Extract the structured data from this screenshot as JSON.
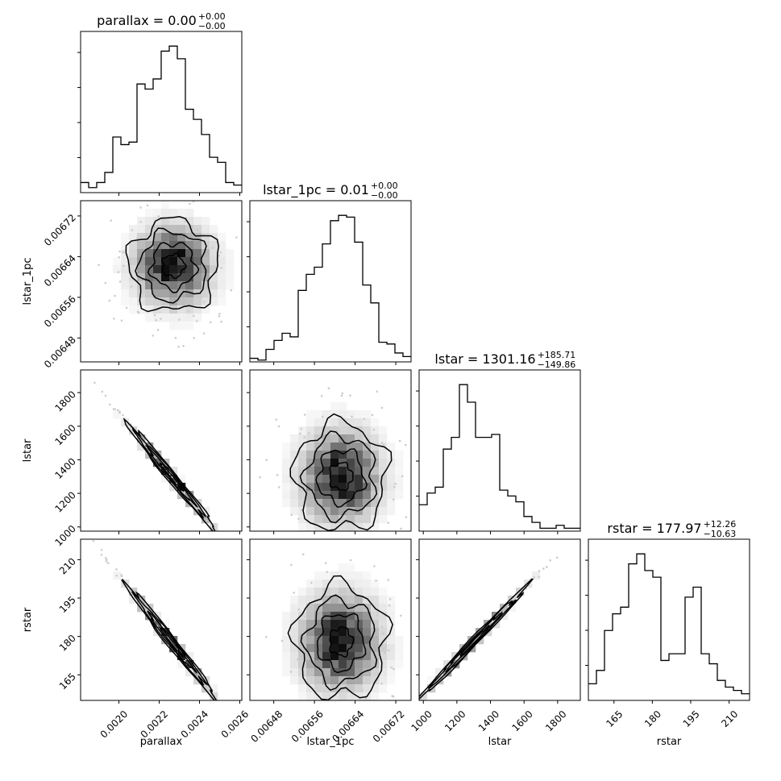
{
  "chart_data": {
    "type": "corner",
    "parameters": [
      {
        "name": "parallax",
        "label": "parallax",
        "range": [
          0.00181,
          0.00261
        ],
        "ticks": [
          0.002,
          0.0022,
          0.0024,
          0.0026
        ],
        "tick_labels": [
          "0.0020",
          "0.0022",
          "0.0024",
          "0.0026"
        ],
        "title": {
          "base": "parallax = 0.00",
          "sup": "+0.00",
          "sub": "−0.00"
        },
        "hist": [
          4,
          2,
          4,
          8,
          22,
          19,
          20,
          43,
          41,
          45,
          56,
          58,
          53,
          33,
          29,
          23,
          14,
          12,
          4,
          3
        ]
      },
      {
        "name": "lstar_1pc",
        "label": "lstar_1pc",
        "range": [
          0.006433,
          0.00675
        ],
        "ticks": [
          0.00648,
          0.00656,
          0.00664,
          0.00672
        ],
        "tick_labels": [
          "0.00648",
          "0.00656",
          "0.00664",
          "0.00672"
        ],
        "title": {
          "base": "lstar_1pc = 0.01",
          "sup": "+0.00",
          "sub": "−0.00"
        },
        "hist": [
          2,
          1,
          7,
          12,
          16,
          14,
          40,
          49,
          53,
          66,
          79,
          82,
          81,
          67,
          43,
          33,
          11,
          10,
          5,
          3
        ]
      },
      {
        "name": "lstar",
        "label": "lstar",
        "range": [
          975,
          1935
        ],
        "ticks": [
          1000,
          1200,
          1400,
          1600,
          1800
        ],
        "tick_labels": [
          "1000",
          "1200",
          "1400",
          "1600",
          "1800"
        ],
        "title": {
          "base": "lstar = 1301.16",
          "sup": "+185.71",
          "sub": "−149.86"
        },
        "hist": [
          9,
          13,
          15,
          28,
          32,
          50,
          44,
          32,
          32,
          33,
          14,
          12,
          10,
          5,
          3,
          1,
          1,
          2,
          1,
          1
        ]
      },
      {
        "name": "rstar",
        "label": "rstar",
        "range": [
          155,
          218
        ],
        "ticks": [
          165,
          180,
          195,
          210
        ],
        "tick_labels": [
          "165",
          "180",
          "195",
          "210"
        ],
        "title": {
          "base": "rstar = 177.97",
          "sup": "+12.26",
          "sub": "−10.63"
        },
        "hist": [
          5,
          9,
          21,
          26,
          28,
          41,
          44,
          39,
          37,
          12,
          14,
          14,
          31,
          34,
          14,
          11,
          6,
          4,
          3,
          2
        ]
      }
    ],
    "hist_style": "step",
    "pairs": [
      {
        "row": 1,
        "col": 0,
        "center": [
          0.00227,
          0.006622
        ],
        "sigma": [
          0.00011,
          4.5e-05
        ],
        "rho": 0.0
      },
      {
        "row": 2,
        "col": 0,
        "center": [
          0.00226,
          1301
        ],
        "sigma": [
          0.00011,
          160
        ],
        "rho": -0.99
      },
      {
        "row": 2,
        "col": 1,
        "center": [
          0.006612,
          1301
        ],
        "sigma": [
          4.5e-05,
          160
        ],
        "rho": 0.0
      },
      {
        "row": 3,
        "col": 0,
        "center": [
          0.00226,
          177.97
        ],
        "sigma": [
          0.00011,
          11
        ],
        "rho": -0.99
      },
      {
        "row": 3,
        "col": 1,
        "center": [
          0.006612,
          177.97
        ],
        "sigma": [
          4.5e-05,
          11
        ],
        "rho": 0.0
      },
      {
        "row": 3,
        "col": 2,
        "center": [
          1301,
          177.97
        ],
        "sigma": [
          160,
          11
        ],
        "rho": 0.995
      }
    ],
    "contour_levels": [
      0.5,
      1.0,
      1.5,
      2.0
    ],
    "colors": {
      "line": "#000000",
      "density_min": "#ffffff",
      "density_max": "#000000"
    },
    "grid": false
  }
}
